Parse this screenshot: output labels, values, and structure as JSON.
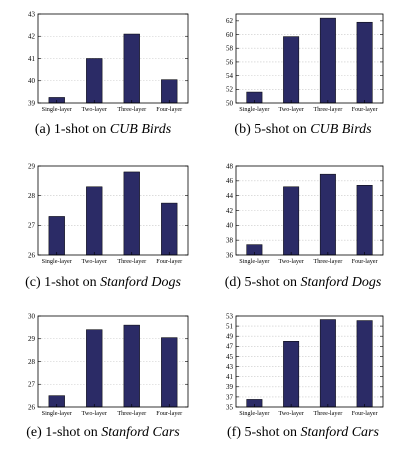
{
  "chart_data": [
    {
      "type": "bar",
      "categories": [
        "Single-layer",
        "Two-layer",
        "Three-layer",
        "Four-layer"
      ],
      "values": [
        39.25,
        41.0,
        42.1,
        40.05
      ],
      "ylim": [
        39,
        43
      ],
      "yticks": [
        39,
        40,
        41,
        42,
        43
      ],
      "grid": true,
      "bar_color": "#2b2b66",
      "caption_prefix": "(a) 1-shot on ",
      "caption_dataset": "CUB Birds"
    },
    {
      "type": "bar",
      "categories": [
        "Single-layer",
        "Two-layer",
        "Three-layer",
        "Four-layer"
      ],
      "values": [
        51.6,
        59.7,
        62.4,
        61.8
      ],
      "ylim": [
        50,
        63
      ],
      "yticks": [
        50,
        52,
        54,
        56,
        58,
        60,
        62
      ],
      "grid": true,
      "bar_color": "#2b2b66",
      "caption_prefix": "(b) 5-shot on ",
      "caption_dataset": "CUB Birds"
    },
    {
      "type": "bar",
      "categories": [
        "Single-layer",
        "Two-layer",
        "Three-layer",
        "Four-layer"
      ],
      "values": [
        27.3,
        28.3,
        28.8,
        27.75
      ],
      "ylim": [
        26,
        29
      ],
      "yticks": [
        26,
        27,
        28,
        29
      ],
      "grid": true,
      "bar_color": "#2b2b66",
      "caption_prefix": "(c) 1-shot on ",
      "caption_dataset": "Stanford Dogs"
    },
    {
      "type": "bar",
      "categories": [
        "Single-layer",
        "Two-layer",
        "Three-layer",
        "Four-layer"
      ],
      "values": [
        37.4,
        45.2,
        46.9,
        45.4
      ],
      "ylim": [
        36,
        48
      ],
      "yticks": [
        36,
        38,
        40,
        42,
        44,
        46,
        48
      ],
      "grid": true,
      "bar_color": "#2b2b66",
      "caption_prefix": "(d) 5-shot on ",
      "caption_dataset": "Stanford Dogs"
    },
    {
      "type": "bar",
      "categories": [
        "Single-layer",
        "Two-layer",
        "Three-layer",
        "Four-layer"
      ],
      "values": [
        26.5,
        29.4,
        29.6,
        29.05
      ],
      "ylim": [
        26,
        30
      ],
      "yticks": [
        26,
        27,
        28,
        29,
        30
      ],
      "grid": true,
      "bar_color": "#2b2b66",
      "caption_prefix": "(e) 1-shot on ",
      "caption_dataset": "Stanford Cars"
    },
    {
      "type": "bar",
      "categories": [
        "Single-layer",
        "Two-layer",
        "Three-layer",
        "Four-layer"
      ],
      "values": [
        36.5,
        48.0,
        52.3,
        52.1
      ],
      "ylim": [
        35,
        53
      ],
      "yticks": [
        35,
        37,
        39,
        41,
        43,
        45,
        47,
        49,
        51,
        53
      ],
      "grid": true,
      "bar_color": "#2b2b66",
      "caption_prefix": "(f) 5-shot on ",
      "caption_dataset": "Stanford Cars"
    }
  ]
}
